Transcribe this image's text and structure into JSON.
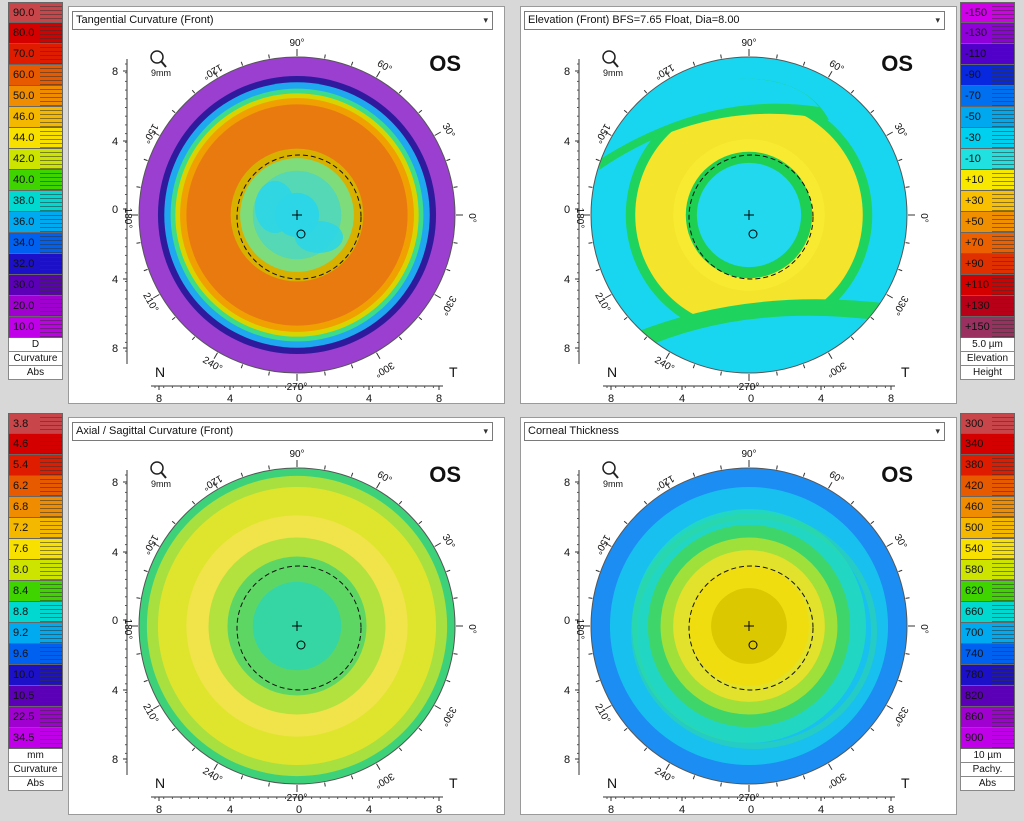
{
  "panels": [
    {
      "id": "tangential",
      "title": "Tangential Curvature (Front)",
      "eye": "OS",
      "zoom": "9mm",
      "scale_side": "left",
      "scale": {
        "values": [
          "90.0",
          "80.0",
          "70.0",
          "60.0",
          "50.0",
          "46.0",
          "44.0",
          "42.0",
          "40.0",
          "38.0",
          "36.0",
          "34.0",
          "32.0",
          "30.0",
          "20.0",
          "10.0"
        ],
        "colors": [
          "#c8464a",
          "#d40000",
          "#e01c00",
          "#e85a00",
          "#ef8c00",
          "#f5b800",
          "#f8e000",
          "#cde400",
          "#3fd400",
          "#00d8d0",
          "#00aaf0",
          "#0060f0",
          "#1c10c8",
          "#5c00b8",
          "#a000d0",
          "#c000e8"
        ],
        "footer": [
          "D",
          "Curvature",
          "Abs"
        ]
      },
      "rings": [
        {
          "r": 1.0,
          "c": "#9b3fd0"
        },
        {
          "r": 0.88,
          "c": "#2f1a9e"
        },
        {
          "r": 0.84,
          "c": "#1fa8f0"
        },
        {
          "r": 0.8,
          "c": "#3cdc8a"
        },
        {
          "r": 0.77,
          "c": "#d9d400"
        },
        {
          "r": 0.74,
          "c": "#f0a000"
        },
        {
          "r": 0.7,
          "c": "#e87a10"
        },
        {
          "r": 0.42,
          "c": "#d7b000"
        },
        {
          "r": 0.36,
          "c": "#7fdc7a"
        },
        {
          "r": 0.28,
          "c": "#54d8b5"
        },
        {
          "r": 0.14,
          "c": "#2cd6e6"
        }
      ]
    },
    {
      "id": "elevation",
      "title": "Elevation (Front)  BFS=7.65 Float, Dia=8.00",
      "eye": "OS",
      "zoom": "9mm",
      "scale_side": "right",
      "scale": {
        "values": [
          "-150",
          "-130",
          "-110",
          "-90",
          "-70",
          "-50",
          "-30",
          "-10",
          "+10",
          "+30",
          "+50",
          "+70",
          "+90",
          "+110",
          "+130",
          "+150"
        ],
        "colors": [
          "#d000e8",
          "#9000d8",
          "#5000c8",
          "#0828e0",
          "#0070f0",
          "#00a8f0",
          "#00d0f0",
          "#20e0e0",
          "#f8e800",
          "#f8c000",
          "#f09000",
          "#ec6000",
          "#e03000",
          "#d40000",
          "#b80018",
          "#9a3060"
        ],
        "footer": [
          "5.0 µm",
          "Elevation",
          "Height"
        ]
      },
      "rings": [
        {
          "r": 1.0,
          "c": "#19d6f0"
        },
        {
          "r": 0.78,
          "c": "#1fd35f"
        },
        {
          "r": 0.72,
          "c": "#f4e42b"
        },
        {
          "r": 0.48,
          "c": "#f7ea30"
        },
        {
          "r": 0.4,
          "c": "#1fcf52"
        },
        {
          "r": 0.33,
          "c": "#21d8ee"
        }
      ]
    },
    {
      "id": "axial",
      "title": "Axial / Sagittal Curvature (Front)",
      "eye": "OS",
      "zoom": "9mm",
      "scale_side": "left",
      "scale": {
        "values": [
          "3.8",
          "4.6",
          "5.4",
          "6.2",
          "6.8",
          "7.2",
          "7.6",
          "8.0",
          "8.4",
          "8.8",
          "9.2",
          "9.6",
          "10.0",
          "10.5",
          "22.5",
          "34.5"
        ],
        "colors": [
          "#c8464a",
          "#d40000",
          "#e01c00",
          "#e85a00",
          "#ef8c00",
          "#f5b800",
          "#f8e000",
          "#cde400",
          "#3fd400",
          "#00d8d0",
          "#00aaf0",
          "#0060f0",
          "#1c10c8",
          "#5c00b8",
          "#a000d0",
          "#c000e8"
        ],
        "footer": [
          "mm",
          "Curvature",
          "Abs"
        ]
      },
      "rings": [
        {
          "r": 1.0,
          "c": "#3dd27a"
        },
        {
          "r": 0.95,
          "c": "#a8e040"
        },
        {
          "r": 0.88,
          "c": "#dfe52c"
        },
        {
          "r": 0.7,
          "c": "#f1e34a"
        },
        {
          "r": 0.56,
          "c": "#b3e23e"
        },
        {
          "r": 0.44,
          "c": "#5ed664"
        },
        {
          "r": 0.28,
          "c": "#35d6a4"
        }
      ]
    },
    {
      "id": "thickness",
      "title": "Corneal Thickness",
      "eye": "OS",
      "zoom": "9mm",
      "scale_side": "right",
      "scale": {
        "values": [
          "300",
          "340",
          "380",
          "420",
          "460",
          "500",
          "540",
          "580",
          "620",
          "660",
          "700",
          "740",
          "780",
          "820",
          "860",
          "900"
        ],
        "colors": [
          "#c8464a",
          "#d40000",
          "#e01c00",
          "#e85a00",
          "#ef8c00",
          "#f5b800",
          "#f8e000",
          "#cde400",
          "#3fd400",
          "#00d8d0",
          "#00aaf0",
          "#0060f0",
          "#1c10c8",
          "#5c00b8",
          "#a000d0",
          "#c000e8"
        ],
        "footer": [
          "10 µm",
          "Pachy.",
          "Abs"
        ]
      },
      "rings": [
        {
          "r": 1.0,
          "c": "#1c8df2"
        },
        {
          "r": 0.88,
          "c": "#18c0f0"
        },
        {
          "r": 0.74,
          "c": "#22d6c4"
        },
        {
          "r": 0.64,
          "c": "#3ed56b"
        },
        {
          "r": 0.56,
          "c": "#9fe03a"
        },
        {
          "r": 0.48,
          "c": "#e2e12c"
        },
        {
          "r": 0.38,
          "c": "#f0dd10"
        },
        {
          "r": 0.24,
          "c": "#dcc800"
        }
      ]
    }
  ],
  "common": {
    "angle_labels": [
      "90°",
      "60°",
      "30°",
      "0°",
      "330°",
      "300°",
      "270°",
      "240°",
      "210°",
      "180°",
      "150°",
      "120°"
    ],
    "y_ticks": [
      "8",
      "4",
      "0",
      "4",
      "8"
    ],
    "x_ticks": [
      "8",
      "4",
      "0",
      "4",
      "8"
    ],
    "nasal": "N",
    "temporal": "T"
  }
}
